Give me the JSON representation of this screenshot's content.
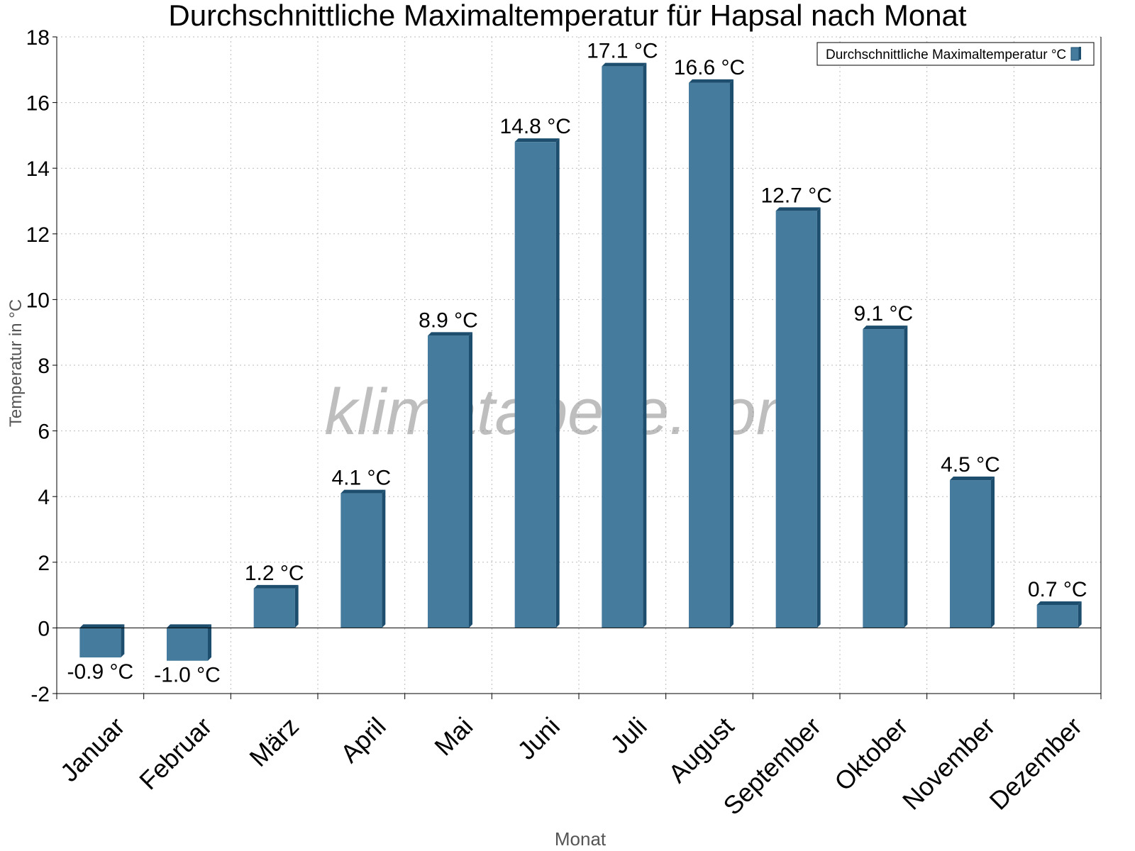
{
  "chart_data": {
    "type": "bar",
    "title": "Durchschnittliche Maximaltemperatur für Hapsal nach Monat",
    "xlabel": "Monat",
    "ylabel": "Temperatur in °C",
    "categories": [
      "Januar",
      "Februar",
      "März",
      "April",
      "Mai",
      "Juni",
      "Juli",
      "August",
      "September",
      "Oktober",
      "November",
      "Dezember"
    ],
    "series": [
      {
        "name": "Durchschnittliche Maximaltemperatur °C",
        "values": [
          -0.9,
          -1.0,
          1.2,
          4.1,
          8.9,
          14.8,
          17.1,
          16.6,
          12.7,
          9.1,
          4.5,
          0.7
        ]
      }
    ],
    "data_labels": [
      "-0.9 °C",
      "-1.0 °C",
      "1.2 °C",
      "4.1 °C",
      "8.9 °C",
      "14.8 °C",
      "17.1 °C",
      "16.6 °C",
      "12.7 °C",
      "9.1 °C",
      "4.5 °C",
      "0.7 °C"
    ],
    "ylim": [
      -2,
      18
    ],
    "yticks": [
      -2,
      0,
      2,
      4,
      6,
      8,
      10,
      12,
      14,
      16,
      18
    ],
    "grid": true,
    "legend_position": "top-right",
    "watermark": "klimatabelle.com",
    "colors": {
      "bar": "#457b9d",
      "bar_side": "#1d4e6e",
      "grid": "#bbbbbb",
      "axis": "#000000",
      "axis_title": "#555555",
      "watermark": "#888888"
    }
  }
}
